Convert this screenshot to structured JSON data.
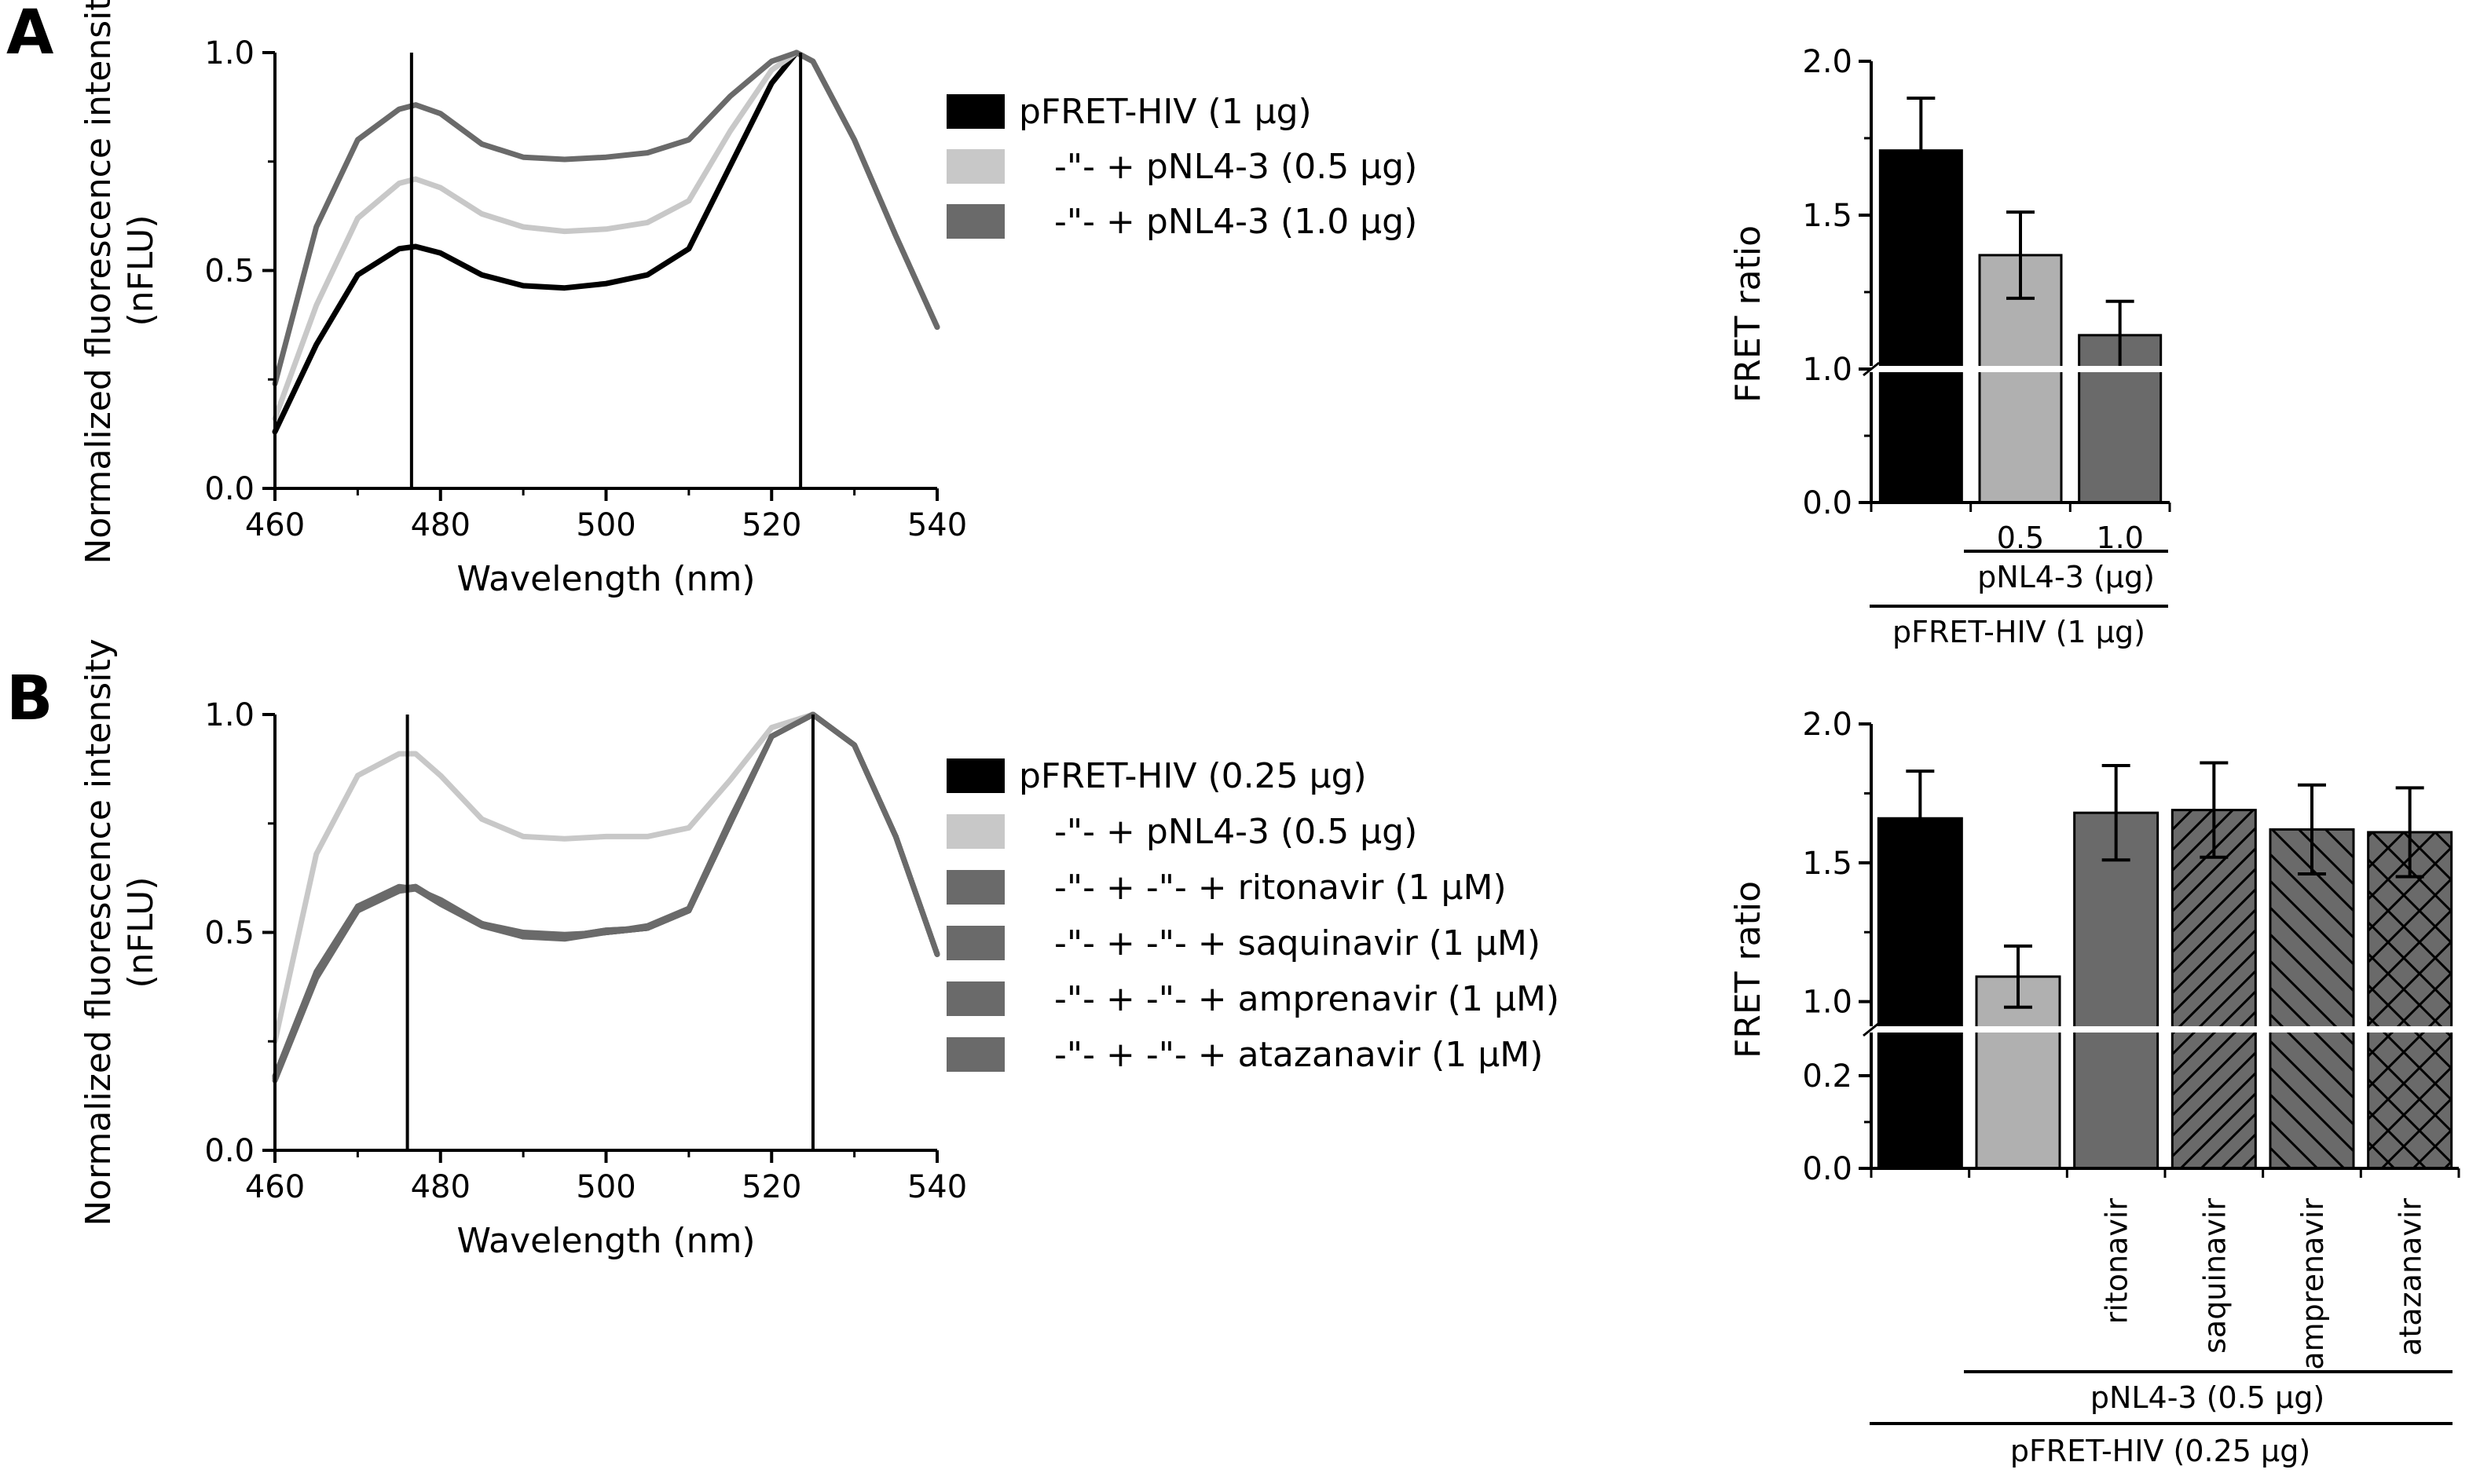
{
  "colors": {
    "black": "#000000",
    "light_gray": "#c8c8c8",
    "light_gray_bar": "#b0b0b0",
    "dark_gray": "#6a6a6a",
    "mid_gray": "#5f5f5f"
  },
  "panels": [
    {
      "letter": "A"
    },
    {
      "letter": "B"
    }
  ],
  "legend_A": [
    {
      "text": "pFRET-HIV (1 µg)",
      "color": "#000000"
    },
    {
      "text": "-\"-   + pNL4-3 (0.5 µg)",
      "color": "#c8c8c8"
    },
    {
      "text": "-\"-   + pNL4-3 (1.0 µg)",
      "color": "#6a6a6a"
    }
  ],
  "legend_B": [
    {
      "text": "pFRET-HIV (0.25 µg)",
      "color": "#000000"
    },
    {
      "text": "-\"-   + pNL4-3 (0.5 µg)",
      "color": "#c8c8c8"
    },
    {
      "text": "-\"-   +   -\"-   + ritonavir (1 µM)",
      "color": "#6a6a6a"
    },
    {
      "text": "-\"-   +   -\"-   + saquinavir (1 µM)",
      "color": "#6a6a6a"
    },
    {
      "text": "-\"-   +   -\"-   + amprenavir (1 µM)",
      "color": "#6a6a6a"
    },
    {
      "text": "-\"-   +   -\"-   + atazanavir (1 µM)",
      "color": "#6a6a6a"
    }
  ],
  "group_labels": {
    "A_inner": "pNL4-3 (µg)",
    "A_outer": "pFRET-HIV (1 µg)",
    "B_inner": "pNL4-3 (0.5 µg)",
    "B_outer": "pFRET-HIV (0.25 µg)"
  },
  "chart_data": [
    {
      "id": "A-spectra",
      "type": "line",
      "xlabel": "Wavelength (nm)",
      "ylabel": "Normalized fluorescence intensity (nFLU)",
      "xlim": [
        460,
        540
      ],
      "ylim": [
        0,
        1
      ],
      "xticks": [
        460,
        480,
        500,
        520,
        540
      ],
      "yticks": [
        0.0,
        0.5,
        1.0
      ],
      "ytick_labels": [
        "0.0",
        "0.5",
        "1.0"
      ],
      "vlines": [
        476.5,
        523.5
      ],
      "series": [
        {
          "name": "pFRET-HIV (1 µg)",
          "color": "#000000",
          "x": [
            460,
            465,
            470,
            475,
            477,
            480,
            485,
            490,
            495,
            500,
            505,
            510,
            515,
            520,
            523,
            525,
            530,
            535,
            540
          ],
          "y": [
            0.13,
            0.33,
            0.49,
            0.55,
            0.555,
            0.54,
            0.49,
            0.465,
            0.46,
            0.47,
            0.49,
            0.55,
            0.74,
            0.93,
            1.0,
            0.98,
            0.8,
            0.58,
            0.37
          ]
        },
        {
          "name": "+ pNL4-3 (0.5 µg)",
          "color": "#c8c8c8",
          "x": [
            460,
            465,
            470,
            475,
            477,
            480,
            485,
            490,
            495,
            500,
            505,
            510,
            515,
            520,
            523,
            525,
            530,
            535,
            540
          ],
          "y": [
            0.16,
            0.42,
            0.62,
            0.7,
            0.71,
            0.69,
            0.63,
            0.6,
            0.59,
            0.595,
            0.61,
            0.66,
            0.82,
            0.96,
            1.0,
            0.98,
            0.8,
            0.58,
            0.37
          ]
        },
        {
          "name": "+ pNL4-3 (1.0 µg)",
          "color": "#6a6a6a",
          "x": [
            460,
            465,
            470,
            475,
            477,
            480,
            485,
            490,
            495,
            500,
            505,
            510,
            515,
            520,
            523,
            525,
            530,
            535,
            540
          ],
          "y": [
            0.24,
            0.6,
            0.8,
            0.87,
            0.88,
            0.86,
            0.79,
            0.76,
            0.755,
            0.76,
            0.77,
            0.8,
            0.9,
            0.98,
            1.0,
            0.98,
            0.8,
            0.58,
            0.37
          ]
        }
      ]
    },
    {
      "id": "A-bars",
      "type": "bar",
      "ylabel": "FRET ratio",
      "axis_break": true,
      "upper_range": [
        1.0,
        2.0
      ],
      "lower_range": [
        0.0,
        1.0
      ],
      "upper_yticks": [
        "1.0",
        "1.5",
        "2.0"
      ],
      "lower_yticks": [
        "0.0"
      ],
      "categories": [
        "",
        "0.5",
        "1.0"
      ],
      "values": [
        1.71,
        1.37,
        1.11
      ],
      "errors": [
        0.17,
        0.14,
        0.11
      ],
      "colors": [
        "#000000",
        "#b0b0b0",
        "#6a6a6a"
      ],
      "patterns": [
        "none",
        "none",
        "none"
      ]
    },
    {
      "id": "B-spectra",
      "type": "line",
      "xlabel": "Wavelength (nm)",
      "ylabel": "Normalized fluorescence intensity (nFLU)",
      "xlim": [
        460,
        540
      ],
      "ylim": [
        0,
        1
      ],
      "xticks": [
        460,
        480,
        500,
        520,
        540
      ],
      "yticks": [
        0.0,
        0.5,
        1.0
      ],
      "ytick_labels": [
        "0.0",
        "0.5",
        "1.0"
      ],
      "vlines": [
        476,
        525
      ],
      "series": [
        {
          "name": "pFRET-HIV (0.25 µg)",
          "color": "#000000",
          "x": [
            460,
            465,
            470,
            475,
            477,
            480,
            485,
            490,
            495,
            500,
            505,
            510,
            515,
            520,
            525,
            530,
            535,
            540
          ],
          "y": [
            0.17,
            0.4,
            0.55,
            0.6,
            0.6,
            0.57,
            0.52,
            0.495,
            0.49,
            0.5,
            0.51,
            0.55,
            0.75,
            0.95,
            1.0,
            0.93,
            0.72,
            0.45
          ]
        },
        {
          "name": "+ pNL4-3 (0.5 µg)",
          "color": "#c8c8c8",
          "x": [
            460,
            465,
            470,
            475,
            477,
            480,
            485,
            490,
            495,
            500,
            505,
            510,
            515,
            520,
            525,
            530,
            535,
            540
          ],
          "y": [
            0.25,
            0.68,
            0.86,
            0.91,
            0.91,
            0.86,
            0.76,
            0.72,
            0.715,
            0.72,
            0.72,
            0.74,
            0.85,
            0.97,
            1.0,
            0.93,
            0.72,
            0.45
          ]
        },
        {
          "name": "+ ritonavir (1 µM)",
          "color": "#6a6a6a",
          "x": [
            460,
            465,
            470,
            475,
            477,
            480,
            485,
            490,
            495,
            500,
            505,
            510,
            515,
            520,
            525,
            530,
            535,
            540
          ],
          "y": [
            0.165,
            0.4,
            0.555,
            0.6,
            0.605,
            0.57,
            0.52,
            0.49,
            0.49,
            0.505,
            0.51,
            0.55,
            0.75,
            0.95,
            1.0,
            0.93,
            0.72,
            0.45
          ]
        },
        {
          "name": "+ saquinavir (1 µM)",
          "color": "#6a6a6a",
          "x": [
            460,
            465,
            470,
            475,
            477,
            480,
            485,
            490,
            495,
            500,
            505,
            510,
            515,
            520,
            525,
            530,
            535,
            540
          ],
          "y": [
            0.17,
            0.41,
            0.56,
            0.605,
            0.6,
            0.575,
            0.52,
            0.5,
            0.495,
            0.5,
            0.515,
            0.555,
            0.76,
            0.95,
            1.0,
            0.93,
            0.72,
            0.45
          ]
        },
        {
          "name": "+ amprenavir (1 µM)",
          "color": "#6a6a6a",
          "x": [
            460,
            465,
            470,
            475,
            477,
            480,
            485,
            490,
            495,
            500,
            505,
            510,
            515,
            520,
            525,
            530,
            535,
            540
          ],
          "y": [
            0.16,
            0.395,
            0.55,
            0.595,
            0.6,
            0.565,
            0.515,
            0.49,
            0.485,
            0.5,
            0.51,
            0.55,
            0.75,
            0.95,
            1.0,
            0.93,
            0.72,
            0.45
          ]
        },
        {
          "name": "+ atazanavir (1 µM)",
          "color": "#6a6a6a",
          "x": [
            460,
            465,
            470,
            475,
            477,
            480,
            485,
            490,
            495,
            500,
            505,
            510,
            515,
            520,
            525,
            530,
            535,
            540
          ],
          "y": [
            0.17,
            0.405,
            0.56,
            0.6,
            0.605,
            0.57,
            0.52,
            0.495,
            0.49,
            0.505,
            0.51,
            0.55,
            0.75,
            0.95,
            1.0,
            0.93,
            0.72,
            0.45
          ]
        }
      ]
    },
    {
      "id": "B-bars",
      "type": "bar",
      "ylabel": "FRET ratio",
      "axis_break": true,
      "upper_range": [
        0.9,
        2.0
      ],
      "lower_range": [
        0.0,
        0.3
      ],
      "upper_yticks": [
        "1.0",
        "1.5",
        "2.0"
      ],
      "lower_yticks": [
        "0.0",
        "0.2"
      ],
      "categories": [
        "",
        "",
        "ritonavir",
        "saquinavir",
        "amprenavir",
        "atazanavir"
      ],
      "values": [
        1.66,
        1.09,
        1.68,
        1.69,
        1.62,
        1.61
      ],
      "errors": [
        0.17,
        0.11,
        0.17,
        0.17,
        0.16,
        0.16
      ],
      "colors": [
        "#000000",
        "#b0b0b0",
        "#6a6a6a",
        "#6a6a6a",
        "#6a6a6a",
        "#6a6a6a"
      ],
      "patterns": [
        "none",
        "none",
        "none",
        "diag-up",
        "diag-down",
        "cross"
      ]
    }
  ]
}
